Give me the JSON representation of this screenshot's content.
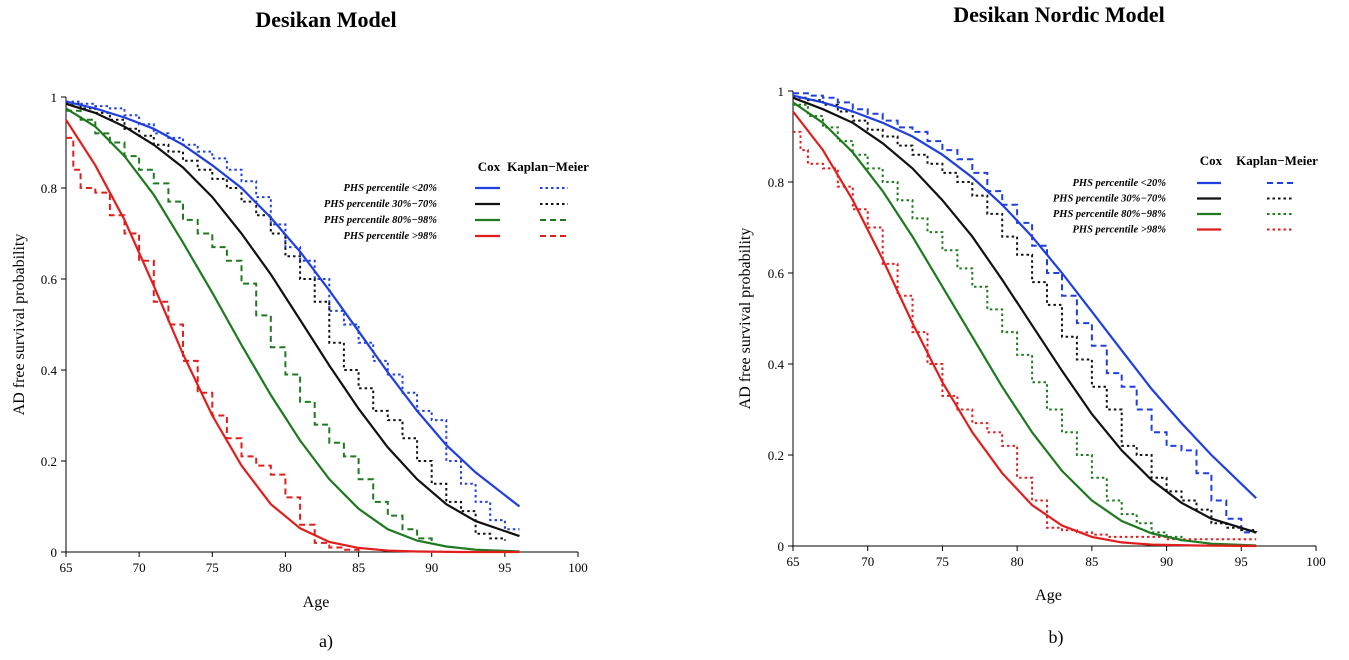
{
  "colors": {
    "blue": "#1f3fe0",
    "black": "#111111",
    "green": "#1e7a1e",
    "red": "#e01e1e"
  },
  "chart_data": [
    {
      "type": "line",
      "title": "Desikan Model",
      "sublabel": "a)",
      "xlabel": "Age",
      "ylabel": "AD free survival probability",
      "xlim": [
        65,
        100
      ],
      "ylim": [
        0,
        1
      ],
      "xticks": [
        65,
        70,
        75,
        80,
        85,
        90,
        95,
        100
      ],
      "yticks": [
        0,
        0.2,
        0.4,
        0.6,
        0.8,
        1
      ],
      "ytick_labels": [
        "0",
        "0.2",
        "0.4",
        "0.6",
        "0.8",
        "1"
      ],
      "legend": {
        "placement": "top-right",
        "cox_header": "Cox",
        "km_header": "Kaplan−Meier",
        "entries": [
          "PHS percentile <20%",
          "PHS percentile 30%−70%",
          "PHS percentile 80%−98%",
          "PHS percentile >98%"
        ]
      },
      "series": [
        {
          "group": "0",
          "method": "Cox",
          "color": "blue",
          "style": "solid",
          "x": [
            65,
            67,
            69,
            71,
            73,
            75,
            77,
            79,
            81,
            83,
            85,
            87,
            89,
            91,
            93,
            96
          ],
          "y": [
            0.99,
            0.975,
            0.955,
            0.93,
            0.895,
            0.85,
            0.8,
            0.735,
            0.66,
            0.575,
            0.485,
            0.395,
            0.31,
            0.235,
            0.175,
            0.1
          ]
        },
        {
          "group": "1",
          "method": "Cox",
          "color": "black",
          "style": "solid",
          "x": [
            65,
            67,
            69,
            71,
            73,
            75,
            77,
            79,
            81,
            83,
            85,
            87,
            89,
            91,
            93,
            96
          ],
          "y": [
            0.985,
            0.965,
            0.935,
            0.895,
            0.845,
            0.78,
            0.7,
            0.61,
            0.51,
            0.41,
            0.315,
            0.23,
            0.16,
            0.105,
            0.068,
            0.035
          ]
        },
        {
          "group": "2",
          "method": "Cox",
          "color": "green",
          "style": "solid",
          "x": [
            65,
            67,
            69,
            71,
            73,
            75,
            77,
            79,
            81,
            83,
            85,
            87,
            89,
            91,
            93,
            96
          ],
          "y": [
            0.975,
            0.935,
            0.87,
            0.785,
            0.68,
            0.57,
            0.455,
            0.345,
            0.245,
            0.16,
            0.095,
            0.05,
            0.025,
            0.012,
            0.005,
            0.001
          ]
        },
        {
          "group": "3",
          "method": "Cox",
          "color": "red",
          "style": "solid",
          "x": [
            65,
            67,
            69,
            71,
            73,
            75,
            77,
            79,
            81,
            83,
            85,
            87,
            89,
            92,
            96
          ],
          "y": [
            0.95,
            0.85,
            0.73,
            0.585,
            0.435,
            0.3,
            0.19,
            0.105,
            0.052,
            0.022,
            0.009,
            0.003,
            0.001,
            0.0,
            0.0
          ]
        },
        {
          "group": "0",
          "method": "Kaplan-Meier",
          "color": "blue",
          "style": "dotted",
          "x": [
            65,
            66,
            67,
            68,
            69,
            70,
            71,
            72,
            73,
            74,
            75,
            76,
            77,
            78,
            79,
            80,
            81,
            82,
            83,
            84,
            85,
            86,
            87,
            88,
            89,
            90,
            91,
            92,
            93,
            94,
            95,
            96
          ],
          "y": [
            0.99,
            0.985,
            0.98,
            0.975,
            0.96,
            0.94,
            0.92,
            0.91,
            0.895,
            0.88,
            0.865,
            0.84,
            0.815,
            0.78,
            0.72,
            0.67,
            0.64,
            0.6,
            0.53,
            0.5,
            0.46,
            0.42,
            0.39,
            0.35,
            0.31,
            0.29,
            0.2,
            0.15,
            0.11,
            0.07,
            0.05,
            0.05
          ]
        },
        {
          "group": "1",
          "method": "Kaplan-Meier",
          "color": "black",
          "style": "dotted",
          "x": [
            65,
            66,
            67,
            68,
            69,
            70,
            71,
            72,
            73,
            74,
            75,
            76,
            77,
            78,
            79,
            80,
            81,
            82,
            83,
            84,
            85,
            86,
            87,
            88,
            89,
            90,
            91,
            92,
            93,
            94,
            95
          ],
          "y": [
            0.985,
            0.975,
            0.965,
            0.95,
            0.93,
            0.915,
            0.895,
            0.88,
            0.86,
            0.84,
            0.82,
            0.8,
            0.77,
            0.74,
            0.7,
            0.65,
            0.6,
            0.55,
            0.46,
            0.4,
            0.36,
            0.31,
            0.29,
            0.25,
            0.2,
            0.15,
            0.11,
            0.09,
            0.04,
            0.03,
            0.025
          ]
        },
        {
          "group": "2",
          "method": "Kaplan-Meier",
          "color": "green",
          "style": "dashed",
          "x": [
            65,
            66,
            67,
            68,
            69,
            70,
            71,
            72,
            73,
            74,
            75,
            76,
            77,
            78,
            79,
            80,
            81,
            82,
            83,
            84,
            85,
            86,
            87,
            88,
            89,
            90
          ],
          "y": [
            0.97,
            0.95,
            0.92,
            0.9,
            0.87,
            0.84,
            0.81,
            0.77,
            0.73,
            0.7,
            0.67,
            0.64,
            0.59,
            0.52,
            0.45,
            0.39,
            0.33,
            0.28,
            0.24,
            0.21,
            0.16,
            0.11,
            0.08,
            0.05,
            0.03,
            0.02
          ]
        },
        {
          "group": "3",
          "method": "Kaplan-Meier",
          "color": "red",
          "style": "dashed",
          "x": [
            65,
            65.5,
            66,
            67,
            68,
            69,
            70,
            71,
            72,
            73,
            74,
            75,
            76,
            77,
            78,
            79,
            80,
            81,
            82,
            83,
            84,
            85
          ],
          "y": [
            0.91,
            0.84,
            0.8,
            0.79,
            0.74,
            0.7,
            0.64,
            0.55,
            0.5,
            0.42,
            0.35,
            0.3,
            0.25,
            0.21,
            0.19,
            0.17,
            0.12,
            0.06,
            0.02,
            0.01,
            0.005,
            0.0
          ]
        }
      ]
    },
    {
      "type": "line",
      "title": "Desikan Nordic Model",
      "sublabel": "b)",
      "xlabel": "Age",
      "ylabel": "AD free survival probability",
      "xlim": [
        65,
        100
      ],
      "ylim": [
        0,
        1
      ],
      "xticks": [
        65,
        70,
        75,
        80,
        85,
        90,
        95,
        100
      ],
      "yticks": [
        0,
        0.2,
        0.4,
        0.6,
        0.8,
        1
      ],
      "ytick_labels": [
        "0",
        "0.2",
        "0.4",
        "0.6",
        "0.8",
        "1"
      ],
      "legend": {
        "placement": "top-right",
        "cox_header": "Cox",
        "km_header": "Kaplan−Meier",
        "entries": [
          "PHS percentile <20%",
          "PHS percentile 30%−70%",
          "PHS percentile 80%−98%",
          "PHS percentile >98%"
        ]
      },
      "series": [
        {
          "group": "0",
          "method": "Cox",
          "color": "blue",
          "style": "solid",
          "x": [
            65,
            67,
            69,
            71,
            73,
            75,
            77,
            79,
            81,
            83,
            85,
            87,
            89,
            91,
            93,
            96
          ],
          "y": [
            0.99,
            0.975,
            0.955,
            0.93,
            0.9,
            0.86,
            0.81,
            0.75,
            0.68,
            0.6,
            0.515,
            0.43,
            0.345,
            0.27,
            0.2,
            0.105
          ]
        },
        {
          "group": "1",
          "method": "Cox",
          "color": "black",
          "style": "solid",
          "x": [
            65,
            67,
            69,
            71,
            73,
            75,
            77,
            79,
            81,
            83,
            85,
            87,
            89,
            91,
            93,
            96
          ],
          "y": [
            0.985,
            0.96,
            0.93,
            0.885,
            0.83,
            0.76,
            0.68,
            0.585,
            0.485,
            0.385,
            0.29,
            0.21,
            0.145,
            0.095,
            0.06,
            0.03
          ]
        },
        {
          "group": "2",
          "method": "Cox",
          "color": "green",
          "style": "solid",
          "x": [
            65,
            67,
            69,
            71,
            73,
            75,
            77,
            79,
            81,
            83,
            85,
            87,
            89,
            91,
            93,
            96
          ],
          "y": [
            0.975,
            0.93,
            0.865,
            0.78,
            0.68,
            0.57,
            0.46,
            0.35,
            0.25,
            0.165,
            0.1,
            0.055,
            0.028,
            0.013,
            0.005,
            0.001
          ]
        },
        {
          "group": "3",
          "method": "Cox",
          "color": "red",
          "style": "solid",
          "x": [
            65,
            67,
            69,
            71,
            73,
            75,
            77,
            79,
            81,
            83,
            85,
            87,
            89,
            92,
            96
          ],
          "y": [
            0.955,
            0.87,
            0.76,
            0.63,
            0.49,
            0.36,
            0.25,
            0.16,
            0.09,
            0.045,
            0.02,
            0.008,
            0.003,
            0.001,
            0.0
          ]
        },
        {
          "group": "0",
          "method": "Kaplan-Meier",
          "color": "blue",
          "style": "dashed",
          "x": [
            65,
            66,
            67,
            68,
            69,
            70,
            71,
            72,
            73,
            74,
            75,
            76,
            77,
            78,
            79,
            80,
            81,
            82,
            83,
            84,
            85,
            86,
            87,
            88,
            89,
            90,
            91,
            92,
            93,
            94,
            95,
            96
          ],
          "y": [
            0.995,
            0.99,
            0.985,
            0.975,
            0.96,
            0.95,
            0.935,
            0.92,
            0.91,
            0.89,
            0.87,
            0.85,
            0.82,
            0.78,
            0.75,
            0.71,
            0.66,
            0.6,
            0.55,
            0.49,
            0.44,
            0.38,
            0.35,
            0.3,
            0.25,
            0.22,
            0.21,
            0.16,
            0.1,
            0.06,
            0.03,
            0.03
          ]
        },
        {
          "group": "1",
          "method": "Kaplan-Meier",
          "color": "black",
          "style": "dotted",
          "x": [
            65,
            66,
            67,
            68,
            69,
            70,
            71,
            72,
            73,
            74,
            75,
            76,
            77,
            78,
            79,
            80,
            81,
            82,
            83,
            84,
            85,
            86,
            87,
            88,
            89,
            90,
            91,
            92,
            93,
            94,
            95,
            96
          ],
          "y": [
            0.985,
            0.98,
            0.97,
            0.955,
            0.935,
            0.915,
            0.9,
            0.88,
            0.86,
            0.84,
            0.82,
            0.8,
            0.77,
            0.73,
            0.68,
            0.64,
            0.58,
            0.53,
            0.46,
            0.41,
            0.35,
            0.3,
            0.22,
            0.2,
            0.15,
            0.12,
            0.1,
            0.08,
            0.05,
            0.04,
            0.035,
            0.03
          ]
        },
        {
          "group": "2",
          "method": "Kaplan-Meier",
          "color": "green",
          "style": "dotted",
          "x": [
            65,
            66,
            67,
            68,
            69,
            70,
            71,
            72,
            73,
            74,
            75,
            76,
            77,
            78,
            79,
            80,
            81,
            82,
            83,
            84,
            85,
            86,
            87,
            88,
            89,
            90,
            91
          ],
          "y": [
            0.97,
            0.945,
            0.92,
            0.89,
            0.86,
            0.83,
            0.8,
            0.76,
            0.72,
            0.69,
            0.65,
            0.61,
            0.57,
            0.52,
            0.47,
            0.42,
            0.36,
            0.3,
            0.25,
            0.2,
            0.15,
            0.1,
            0.07,
            0.05,
            0.03,
            0.02,
            0.01
          ]
        },
        {
          "group": "3",
          "method": "Kaplan-Meier",
          "color": "red",
          "style": "dotted",
          "x": [
            65,
            65.5,
            66,
            67,
            68,
            69,
            70,
            71,
            72,
            73,
            74,
            75,
            76,
            77,
            78,
            79,
            80,
            81,
            82,
            83,
            84,
            85,
            86,
            88,
            90,
            92,
            94,
            96
          ],
          "y": [
            0.91,
            0.87,
            0.84,
            0.83,
            0.79,
            0.74,
            0.7,
            0.62,
            0.55,
            0.47,
            0.4,
            0.33,
            0.3,
            0.27,
            0.25,
            0.22,
            0.15,
            0.1,
            0.04,
            0.035,
            0.03,
            0.025,
            0.02,
            0.02,
            0.015,
            0.015,
            0.015,
            0.015
          ]
        }
      ]
    }
  ]
}
